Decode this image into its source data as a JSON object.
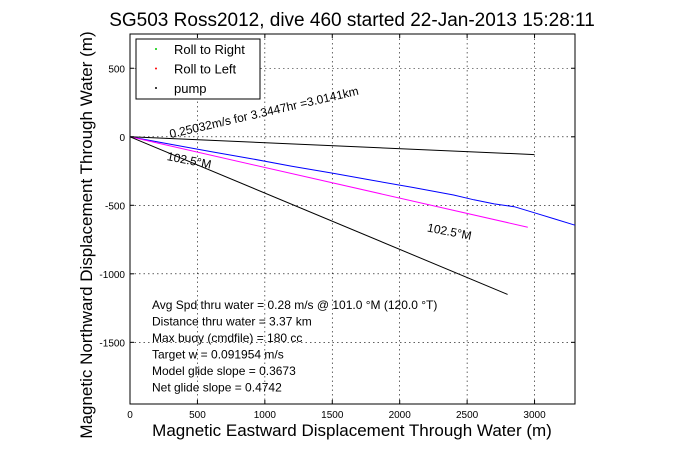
{
  "chart_data": {
    "type": "line",
    "title": "SG503 Ross2012, dive 460 started 22-Jan-2013 15:28:11",
    "xlabel": "Magnetic Eastward Displacement Through Water (m)",
    "ylabel": "Magnetic Northward Displacement Through Water (m)",
    "xlim": [
      0,
      3300
    ],
    "ylim": [
      -1950,
      750
    ],
    "xticks": [
      0,
      500,
      1000,
      1500,
      2000,
      2500,
      3000
    ],
    "yticks": [
      500,
      0,
      -500,
      -1000,
      -1500
    ],
    "grid": true,
    "legend_placement": "top-left",
    "legend": [
      {
        "label": "Roll to Right",
        "color": "#00cc00",
        "marker": "."
      },
      {
        "label": "Roll to Left",
        "color": "#ff0000",
        "marker": "."
      },
      {
        "label": "pump",
        "color": "#000000",
        "marker": "."
      }
    ],
    "series": [
      {
        "color": "#0000ff",
        "style": "solid",
        "x": [
          0,
          300,
          600,
          900,
          1200,
          1500,
          1800,
          2100,
          2400,
          2550,
          2700,
          2850,
          3000,
          3150,
          3300
        ],
        "y": [
          0,
          -55,
          -108,
          -160,
          -215,
          -265,
          -318,
          -370,
          -425,
          -460,
          -490,
          -510,
          -555,
          -600,
          -645
        ]
      },
      {
        "color": "#ff00ff",
        "style": "solid",
        "x": [
          0,
          2950
        ],
        "y": [
          0,
          -660
        ]
      },
      {
        "color": "#000000",
        "style": "solid",
        "x": [
          0,
          2800
        ],
        "y": [
          0,
          -1150
        ]
      },
      {
        "color": "#000000",
        "style": "solid",
        "x": [
          0,
          3000
        ],
        "y": [
          0,
          -130
        ]
      }
    ],
    "annotations": [
      {
        "text": "0.25032m/s for 3.3447hr =3.0141km",
        "x": 300,
        "y": -10,
        "rotate": -13
      },
      {
        "text": "102.5°M",
        "x": 270,
        "y": -170,
        "rotate": 11
      },
      {
        "text": "102.5°M",
        "x": 2200,
        "y": -690,
        "rotate": 11
      }
    ],
    "stats": [
      "Avg Spd thru water =  0.28 m/s @ 101.0    °M (120.0 °T)",
      "Distance thru water =  3.37 km",
      "Max buoy (cmdfile) = 180 cc",
      "Target w = 0.091954 m/s",
      "Model glide slope = 0.3673",
      "Net glide slope = 0.4742"
    ]
  }
}
